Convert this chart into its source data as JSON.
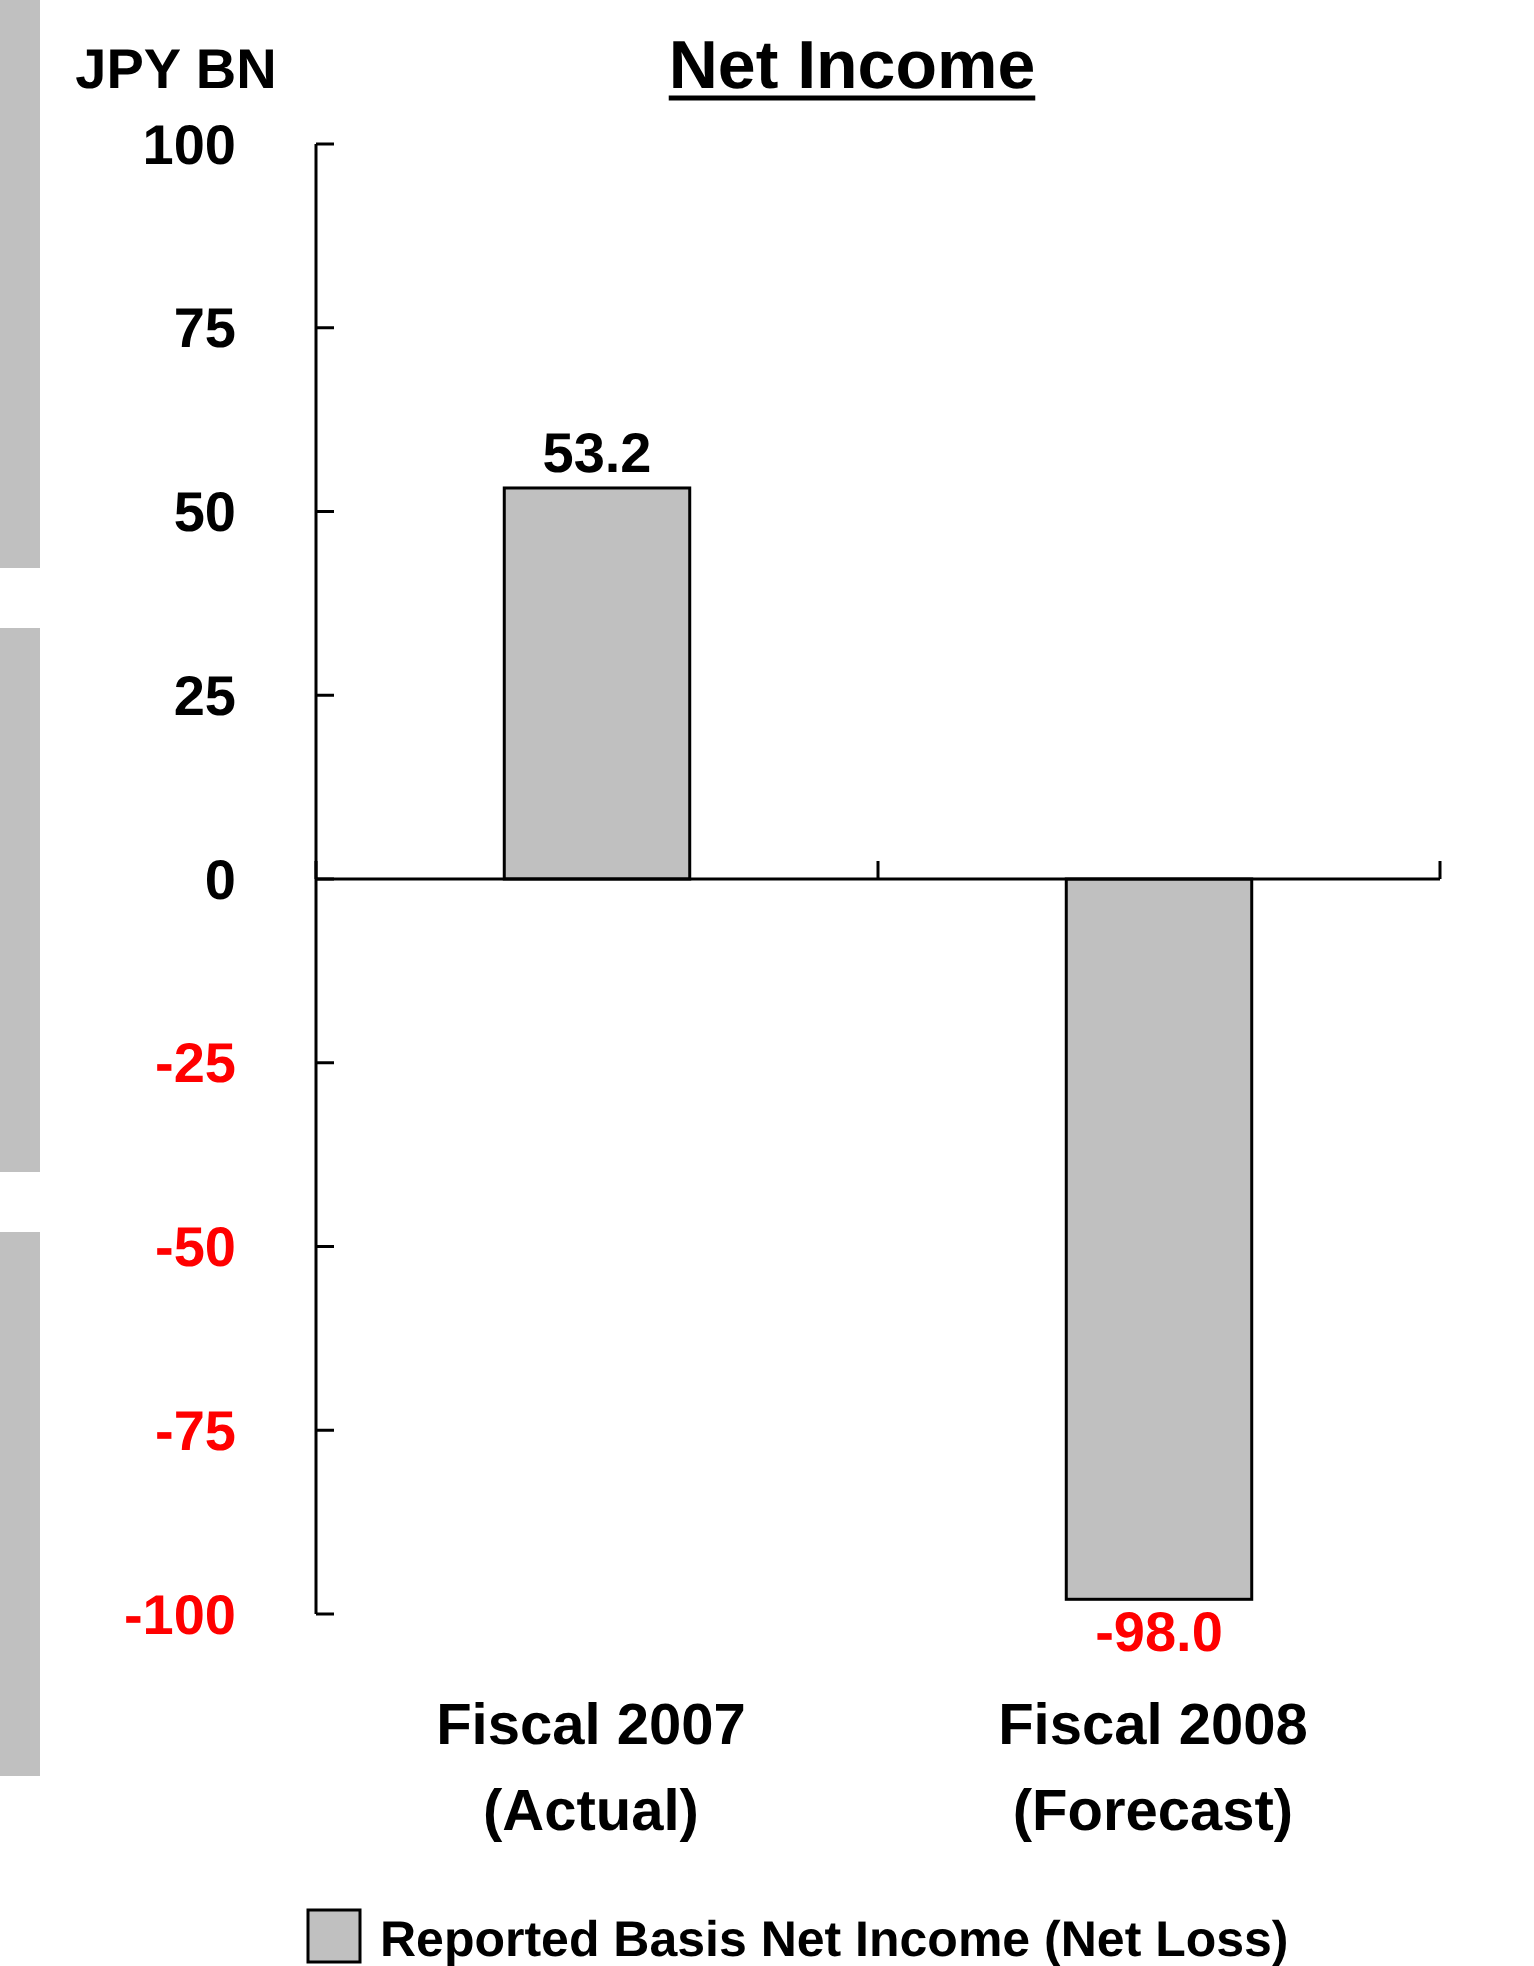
{
  "chart_data": {
    "type": "bar",
    "title": "Net Income",
    "ylabel": "JPY BN",
    "categories": [
      "Fiscal 2007\n(Actual)",
      "Fiscal 2008\n(Forecast)"
    ],
    "series": [
      {
        "name": "Reported Basis Net Income (Net Loss)",
        "color": "#c0c0c0",
        "values": [
          53.2,
          -98.0
        ],
        "value_labels": [
          "53.2",
          "-98.0"
        ]
      }
    ],
    "ylim": [
      -100,
      100
    ],
    "yticks": [
      -100,
      -75,
      -50,
      -25,
      0,
      25,
      50,
      75,
      100
    ],
    "legend": "bottom"
  }
}
